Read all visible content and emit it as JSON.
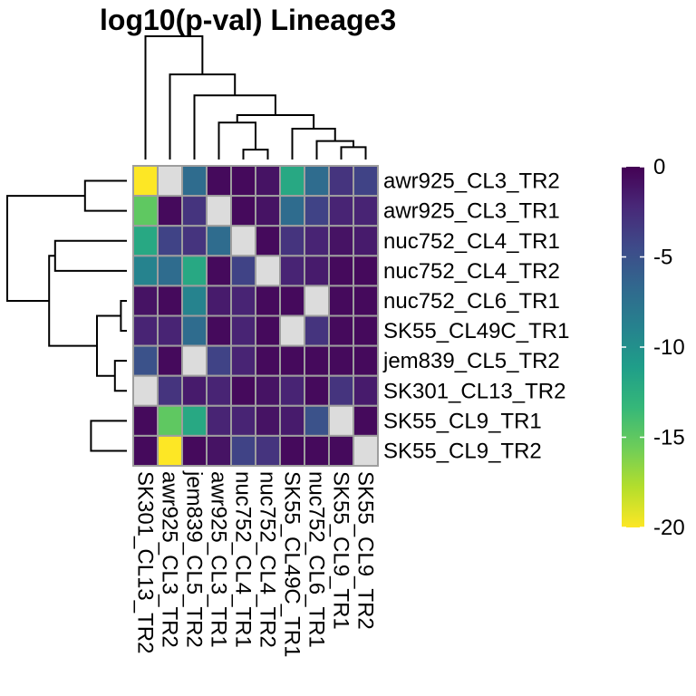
{
  "chart_data": {
    "type": "heatmap",
    "title": "log10(p-val) Lineage3",
    "row_labels": [
      "awr925_CL3_TR2",
      "awr925_CL3_TR1",
      "nuc752_CL4_TR1",
      "nuc752_CL4_TR2",
      "nuc752_CL6_TR1",
      "SK55_CL49C_TR1",
      "jem839_CL5_TR2",
      "SK301_CL13_TR2",
      "SK55_CL9_TR1",
      "SK55_CL9_TR2"
    ],
    "col_labels": [
      "SK301_CL13_TR2",
      "awr925_CL3_TR2",
      "jem839_CL5_TR2",
      "awr925_CL3_TR1",
      "nuc752_CL4_TR1",
      "nuc752_CL4_TR2",
      "SK55_CL49C_TR1",
      "nuc752_CL6_TR1",
      "SK55_CL9_TR1",
      "SK55_CL9_TR2"
    ],
    "values": [
      [
        -20,
        null,
        -7,
        -0.5,
        -0.5,
        -1,
        -12,
        -7,
        -3,
        -4
      ],
      [
        -15,
        -0.5,
        -3,
        null,
        -0.5,
        -1,
        -7,
        -4,
        -2,
        -2
      ],
      [
        -12,
        -4,
        -3,
        -7,
        null,
        -0.5,
        -3,
        -2,
        -1,
        -1.5
      ],
      [
        -9,
        -7,
        -12,
        -0.5,
        -4,
        null,
        -2,
        -1.5,
        -0.5,
        -0.5
      ],
      [
        -1,
        -0.5,
        -9,
        -1.5,
        -2,
        -0.5,
        -0.5,
        null,
        -0.5,
        -0.5
      ],
      [
        -2,
        -2,
        -7,
        -0.5,
        -2,
        -0.5,
        null,
        -3,
        -0.5,
        -0.5
      ],
      [
        -5,
        -0.5,
        null,
        -4,
        -2,
        -0.5,
        -0.5,
        -0.5,
        -0.5,
        -0.5
      ],
      [
        null,
        -3,
        -1.5,
        -2,
        -0.5,
        -1,
        -2,
        -0.5,
        -3,
        -1.5
      ],
      [
        -0.5,
        -15,
        -12,
        -2,
        -2,
        -1,
        -1.5,
        -5,
        null,
        -0.5
      ],
      [
        -0.5,
        -20,
        -0.5,
        -1,
        -4,
        -3,
        -0.5,
        -0.5,
        -0.5,
        null
      ]
    ],
    "missing_color": "#dcdcdc",
    "colorscale": "viridis",
    "legend": {
      "range": [
        0,
        -20
      ],
      "ticks": [
        0,
        -5,
        -10,
        -15,
        -20
      ],
      "tick_labels": [
        "0",
        "-5",
        "-10",
        "-15",
        "-20"
      ],
      "placement": "right"
    },
    "row_dendrogram": {
      "merges": [
        [
          0,
          1
        ],
        [
          8,
          9
        ],
        [
          4,
          5
        ],
        [
          6,
          7
        ],
        [
          12,
          13
        ],
        [
          2,
          3
        ],
        [
          15,
          14
        ],
        [
          16,
          10
        ],
        [
          17,
          11
        ]
      ],
      "heights": [
        0.35,
        0.3,
        0.05,
        0.1,
        0.25,
        0.6,
        0.65,
        1.0,
        0.0
      ]
    },
    "col_dendrogram": {
      "merges": [
        [
          4,
          5
        ],
        [
          8,
          9
        ],
        [
          7,
          11
        ],
        [
          6,
          12
        ],
        [
          3,
          10
        ],
        [
          14,
          13
        ],
        [
          2,
          15
        ],
        [
          1,
          16
        ],
        [
          0,
          17
        ]
      ],
      "heights": [
        0.08,
        0.1,
        0.15,
        0.25,
        0.3,
        0.36,
        0.52,
        0.69,
        1.0
      ]
    }
  }
}
